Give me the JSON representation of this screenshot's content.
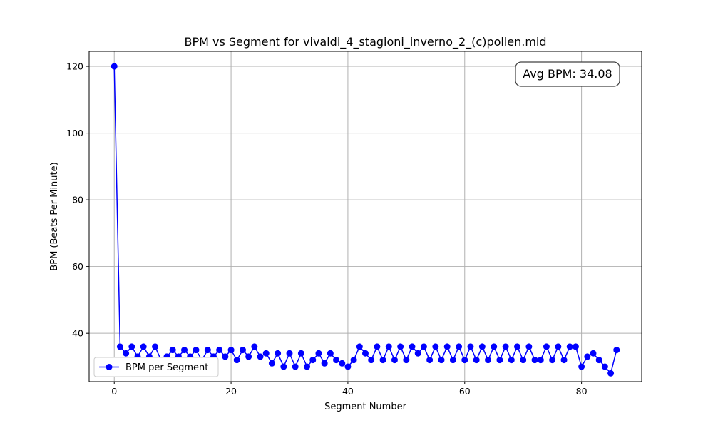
{
  "chart_data": {
    "type": "line",
    "title": "BPM vs Segment for vivaldi_4_stagioni_inverno_2_(c)pollen.mid",
    "xlabel": "Segment Number",
    "ylabel": "BPM (Beats Per Minute)",
    "xlim": [
      -4.3,
      90.3
    ],
    "ylim": [
      25.5,
      124.5
    ],
    "xticks": [
      0,
      20,
      40,
      60,
      80
    ],
    "yticks": [
      40,
      60,
      80,
      100,
      120
    ],
    "grid": true,
    "legend_position": "lower-left",
    "annotation": "Avg BPM: 34.08",
    "series": [
      {
        "name": "BPM per Segment",
        "color": "#0000ff",
        "marker": "circle",
        "x": [
          0,
          1,
          2,
          3,
          4,
          5,
          6,
          7,
          8,
          9,
          10,
          11,
          12,
          13,
          14,
          15,
          16,
          17,
          18,
          19,
          20,
          21,
          22,
          23,
          24,
          25,
          26,
          27,
          28,
          29,
          30,
          31,
          32,
          33,
          34,
          35,
          36,
          37,
          38,
          39,
          40,
          41,
          42,
          43,
          44,
          45,
          46,
          47,
          48,
          49,
          50,
          51,
          52,
          53,
          54,
          55,
          56,
          57,
          58,
          59,
          60,
          61,
          62,
          63,
          64,
          65,
          66,
          67,
          68,
          69,
          70,
          71,
          72,
          73,
          74,
          75,
          76,
          77,
          78,
          79,
          80,
          81,
          82,
          83,
          84,
          85,
          86
        ],
        "y": [
          120,
          36,
          34,
          36,
          33,
          36,
          33,
          36,
          32,
          33,
          35,
          33,
          35,
          33,
          35,
          32,
          35,
          33,
          35,
          33,
          35,
          32,
          35,
          33,
          36,
          33,
          34,
          31,
          34,
          30,
          34,
          30,
          34,
          30,
          32,
          34,
          31,
          34,
          32,
          31,
          30,
          32,
          36,
          34,
          32,
          36,
          32,
          36,
          32,
          36,
          32,
          36,
          34,
          36,
          32,
          36,
          32,
          36,
          32,
          36,
          32,
          36,
          32,
          36,
          32,
          36,
          32,
          36,
          32,
          36,
          32,
          36,
          32,
          32,
          36,
          32,
          36,
          32,
          36,
          36,
          30,
          33,
          34,
          32,
          30,
          28,
          35
        ]
      }
    ]
  }
}
